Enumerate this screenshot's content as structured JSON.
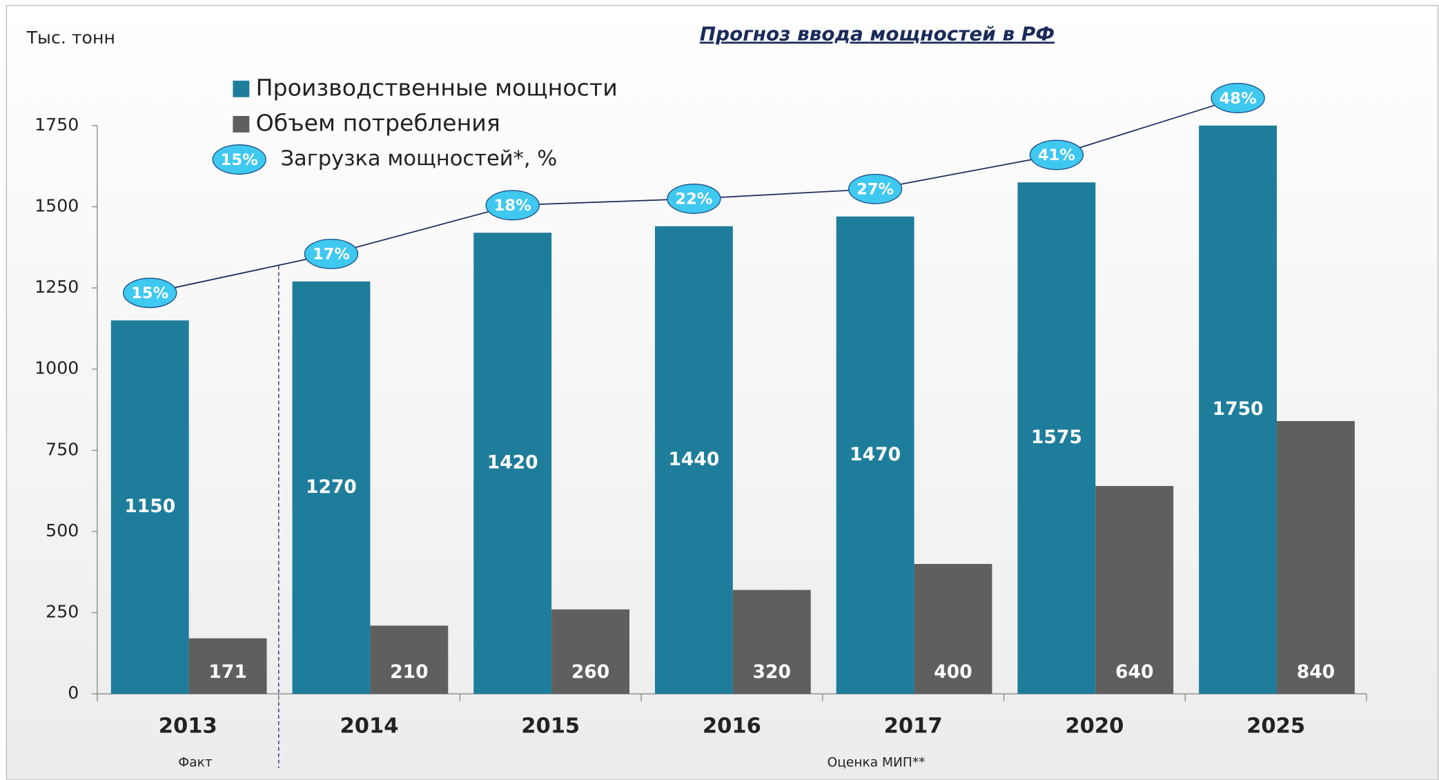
{
  "chart_data": {
    "type": "bar",
    "title": "Прогноз ввода мощностей в РФ",
    "y_axis_label": "Тыс. тонн",
    "categories": [
      "2013",
      "2014",
      "2015",
      "2016",
      "2017",
      "2020",
      "2025"
    ],
    "series": [
      {
        "name": "Производственные мощности",
        "color": "#1e7d9b",
        "values": [
          1150,
          1270,
          1420,
          1440,
          1470,
          1575,
          1750
        ]
      },
      {
        "name": "Объем потребления",
        "color": "#5f5f5f",
        "values": [
          171,
          210,
          260,
          320,
          400,
          640,
          840
        ]
      },
      {
        "name": "Загрузка мощностей*, %",
        "type": "line",
        "color": "#3fc8f0",
        "values": [
          15,
          17,
          18,
          22,
          27,
          41,
          48
        ],
        "value_labels": [
          "15%",
          "17%",
          "18%",
          "22%",
          "27%",
          "41%",
          "48%"
        ]
      }
    ],
    "ylim": [
      0,
      1750
    ],
    "yticks": [
      0,
      250,
      500,
      750,
      1000,
      1250,
      1500,
      1750
    ],
    "annotations": [
      "Факт",
      "Оценка МИП**"
    ]
  }
}
